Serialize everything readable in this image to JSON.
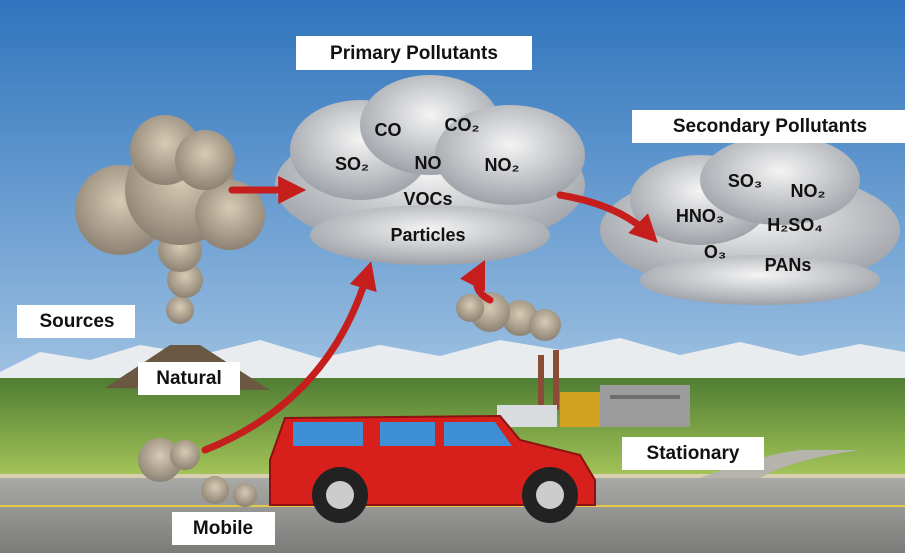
{
  "title": "Primary Pollutants",
  "secondary_title": "Secondary Pollutants",
  "sources": {
    "label": "Sources",
    "natural": "Natural",
    "mobile": "Mobile",
    "stationary": "Stationary"
  },
  "primary": [
    "CO",
    "CO₂",
    "SO₂",
    "NO",
    "NO₂",
    "VOCs",
    "Particles"
  ],
  "secondary": [
    "SO₃",
    "NO₂",
    "HNO₃",
    "H₂SO₄",
    "O₃",
    "PANs"
  ]
}
